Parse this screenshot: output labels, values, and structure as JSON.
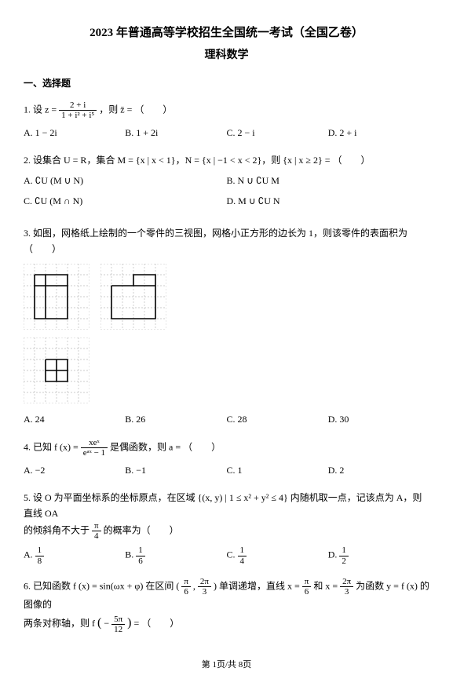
{
  "header": {
    "title1": "2023 年普通高等学校招生全国统一考试（全国乙卷）",
    "title2": "理科数学"
  },
  "section": "一、选择题",
  "q1": {
    "stem_pre": "1. 设 ",
    "frac_n": "2 + i",
    "frac_d": "1 + i² + i⁵",
    "stem_mid": "z = ",
    "stem_post": "，则 z̄ = （　　）",
    "A": "A.  1 − 2i",
    "B": "B.  1 + 2i",
    "C": "C.  2 − i",
    "D": "D.  2 + i"
  },
  "q2": {
    "stem": "2. 设集合 U = R，集合 M = {x | x < 1}，N = {x | −1 < x < 2}，则 {x | x ≥ 2} = （　　）",
    "A": "A.  ∁U (M ∪ N)",
    "B": "B.  N ∪ ∁U M",
    "C": "C.  ∁U (M ∩ N)",
    "D": "D.  M ∪ ∁U N"
  },
  "q3": {
    "stem": "3. 如图，网格纸上绘制的一个零件的三视图，网格小正方形的边长为 1，则该零件的表面积为（　　）",
    "A": "A. 24",
    "B": "B. 26",
    "C": "C. 28",
    "D": "D. 30"
  },
  "q4": {
    "stem_pre": "4. 已知 f (x) = ",
    "frac_n": "xeˣ",
    "frac_d": "eᵃˣ − 1",
    "stem_post": " 是偶函数，则 a = （　　）",
    "A": "A.  −2",
    "B": "B.  −1",
    "C": "C.  1",
    "D": "D.  2"
  },
  "q5": {
    "stem_l1": "5. 设 O 为平面坐标系的坐标原点，在区域 {(x, y) | 1 ≤ x² + y² ≤ 4} 内随机取一点，记该点为 A，则直线 OA",
    "stem_l2_pre": "的倾斜角不大于 ",
    "pi4_n": "π",
    "pi4_d": "4",
    "stem_l2_post": " 的概率为（　　）",
    "optA_pre": "A.  ",
    "A_n": "1",
    "A_d": "8",
    "optB_pre": "B.  ",
    "B_n": "1",
    "B_d": "6",
    "optC_pre": "C.  ",
    "C_n": "1",
    "C_d": "4",
    "optD_pre": "D.  ",
    "D_n": "1",
    "D_d": "2"
  },
  "q6": {
    "stem_pre": "6. 已知函数 f (x) = sin(ωx + φ) 在区间 ",
    "int_l_n": "π",
    "int_l_d": "6",
    "comma": ", ",
    "int_r_n": "2π",
    "int_r_d": "3",
    "stem_mid1": " 单调递增，直线 x = ",
    "x1_n": "π",
    "x1_d": "6",
    "stem_mid2": " 和 x = ",
    "x2_n": "2π",
    "x2_d": "3",
    "stem_mid3": " 为函数 y = f (x) 的图像的",
    "stem_l2_pre": "两条对称轴，则 f ",
    "arg_n": "5π",
    "arg_d": "12",
    "stem_l2_post": " = （　　）",
    "lparen": "(",
    "rparen": ")",
    "minus": "−"
  },
  "footer": "第 1页/共 8页",
  "diagrams": {
    "cell": 14,
    "cols": 6,
    "rows": 6,
    "grid_color": "#bbbbbb",
    "stroke_color": "#000000",
    "stroke_width": 1.6,
    "view1_outline": [
      [
        1,
        1
      ],
      [
        4,
        1
      ],
      [
        4,
        5
      ],
      [
        1,
        5
      ],
      [
        1,
        1
      ]
    ],
    "view1_inner": [
      [
        [
          1,
          2
        ],
        [
          4,
          2
        ]
      ],
      [
        [
          2,
          1
        ],
        [
          2,
          5
        ]
      ]
    ],
    "view2_outline": [
      [
        1,
        2
      ],
      [
        3,
        2
      ],
      [
        3,
        1
      ],
      [
        5,
        1
      ],
      [
        5,
        5
      ],
      [
        1,
        5
      ],
      [
        1,
        2
      ]
    ],
    "view2_inner": [
      [
        [
          3,
          2
        ],
        [
          5,
          2
        ]
      ]
    ],
    "view3_outline": [
      [
        2,
        2
      ],
      [
        4,
        2
      ],
      [
        4,
        4
      ],
      [
        2,
        4
      ],
      [
        2,
        2
      ]
    ],
    "view3_inner": [
      [
        [
          2,
          3
        ],
        [
          4,
          3
        ]
      ],
      [
        [
          3,
          2
        ],
        [
          3,
          4
        ]
      ]
    ]
  }
}
